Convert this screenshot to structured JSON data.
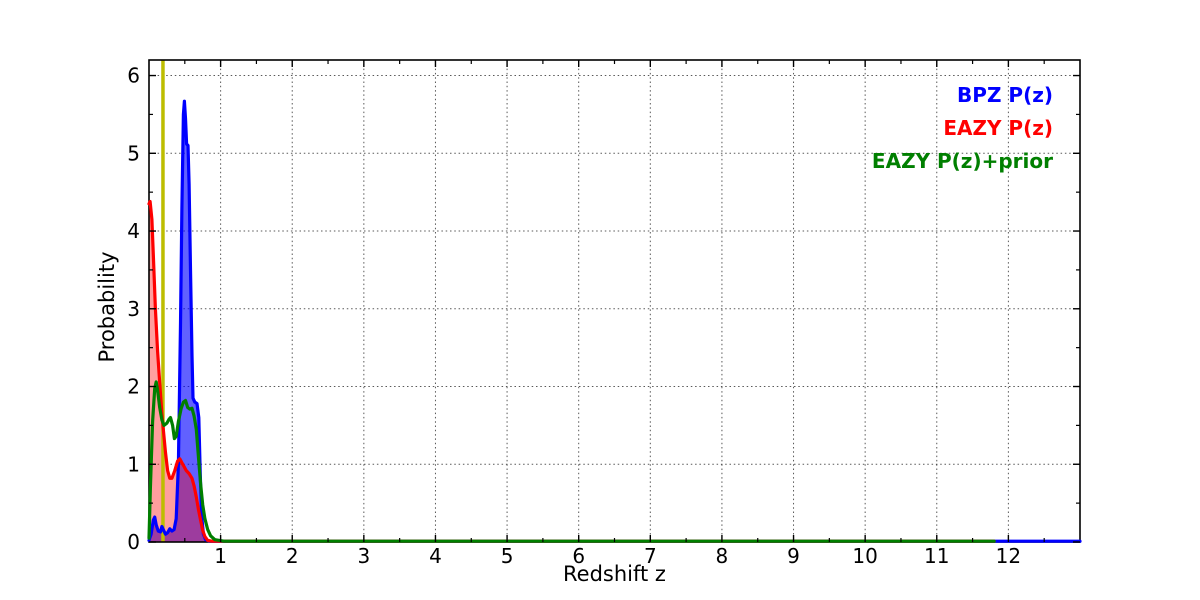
{
  "figure": {
    "background": "#ffffff"
  },
  "chart_data": {
    "type": "line",
    "title": "",
    "xlabel": "Redshift z",
    "ylabel": "Probability",
    "xlim": [
      0,
      13
    ],
    "ylim": [
      0,
      6.2
    ],
    "x_tick_values": [
      1,
      2,
      3,
      4,
      5,
      6,
      7,
      8,
      9,
      10,
      11,
      12
    ],
    "x_tick_labels": [
      "1",
      "2",
      "3",
      "4",
      "5",
      "6",
      "7",
      "8",
      "9",
      "10",
      "11",
      "12"
    ],
    "y_tick_values": [
      0,
      1,
      2,
      3,
      4,
      5,
      6
    ],
    "y_tick_labels": [
      "0",
      "1",
      "2",
      "3",
      "4",
      "5",
      "6"
    ],
    "minor_tick_step": 0.5,
    "grid": {
      "on": true,
      "style": "dotted",
      "color": "#000000",
      "ticks": "major"
    },
    "frame_color": "#000000",
    "vertical_marker": {
      "x": 0.195,
      "color": "#bdbd00"
    },
    "series": [
      {
        "name": "BPZ P(z)",
        "color": "#0000ff",
        "fill": true,
        "fill_opacity": 0.62,
        "points": [
          [
            0,
            0.02
          ],
          [
            0.03,
            0.1
          ],
          [
            0.06,
            0.28
          ],
          [
            0.08,
            0.32
          ],
          [
            0.1,
            0.22
          ],
          [
            0.13,
            0.14
          ],
          [
            0.16,
            0.13
          ],
          [
            0.18,
            0.2
          ],
          [
            0.2,
            0.16
          ],
          [
            0.23,
            0.1
          ],
          [
            0.26,
            0.12
          ],
          [
            0.29,
            0.17
          ],
          [
            0.32,
            0.14
          ],
          [
            0.35,
            0.16
          ],
          [
            0.38,
            0.3
          ],
          [
            0.41,
            1.0
          ],
          [
            0.44,
            2.8
          ],
          [
            0.46,
            4.3
          ],
          [
            0.48,
            5.5
          ],
          [
            0.495,
            5.67
          ],
          [
            0.51,
            5.45
          ],
          [
            0.525,
            5.12
          ],
          [
            0.545,
            5.1
          ],
          [
            0.56,
            4.6
          ],
          [
            0.58,
            3.5
          ],
          [
            0.6,
            2.4
          ],
          [
            0.615,
            1.85
          ],
          [
            0.64,
            1.8
          ],
          [
            0.67,
            1.78
          ],
          [
            0.695,
            1.6
          ],
          [
            0.715,
            0.9
          ],
          [
            0.735,
            0.35
          ],
          [
            0.76,
            0.1
          ],
          [
            0.79,
            0.03
          ],
          [
            0.85,
            0.01
          ],
          [
            1.0,
            0.01
          ],
          [
            13,
            0.01
          ]
        ]
      },
      {
        "name": "EAZY P(z)",
        "color": "#ff0000",
        "fill": true,
        "fill_opacity": 0.38,
        "points": [
          [
            0,
            4.35
          ],
          [
            0.015,
            4.38
          ],
          [
            0.04,
            4.15
          ],
          [
            0.06,
            3.7
          ],
          [
            0.09,
            3.0
          ],
          [
            0.12,
            2.45
          ],
          [
            0.15,
            2.05
          ],
          [
            0.18,
            1.65
          ],
          [
            0.2,
            1.45
          ],
          [
            0.23,
            1.15
          ],
          [
            0.26,
            0.92
          ],
          [
            0.29,
            0.82
          ],
          [
            0.32,
            0.82
          ],
          [
            0.36,
            0.92
          ],
          [
            0.4,
            1.04
          ],
          [
            0.43,
            1.07
          ],
          [
            0.46,
            1.02
          ],
          [
            0.49,
            0.97
          ],
          [
            0.52,
            0.92
          ],
          [
            0.56,
            0.88
          ],
          [
            0.6,
            0.82
          ],
          [
            0.63,
            0.72
          ],
          [
            0.66,
            0.58
          ],
          [
            0.69,
            0.42
          ],
          [
            0.72,
            0.28
          ],
          [
            0.75,
            0.15
          ],
          [
            0.78,
            0.07
          ],
          [
            0.82,
            0.02
          ],
          [
            0.88,
            0.01
          ],
          [
            11.8,
            0.01
          ]
        ]
      },
      {
        "name": "EAZY P(z)+prior",
        "color": "#007f00",
        "fill": false,
        "fill_opacity": 0,
        "points": [
          [
            0,
            0.05
          ],
          [
            0.02,
            0.7
          ],
          [
            0.05,
            1.55
          ],
          [
            0.08,
            1.97
          ],
          [
            0.1,
            2.06
          ],
          [
            0.12,
            1.95
          ],
          [
            0.15,
            1.73
          ],
          [
            0.18,
            1.57
          ],
          [
            0.21,
            1.5
          ],
          [
            0.25,
            1.53
          ],
          [
            0.28,
            1.58
          ],
          [
            0.3,
            1.6
          ],
          [
            0.33,
            1.5
          ],
          [
            0.355,
            1.33
          ],
          [
            0.38,
            1.36
          ],
          [
            0.41,
            1.55
          ],
          [
            0.45,
            1.72
          ],
          [
            0.48,
            1.8
          ],
          [
            0.51,
            1.82
          ],
          [
            0.54,
            1.73
          ],
          [
            0.57,
            1.71
          ],
          [
            0.6,
            1.72
          ],
          [
            0.63,
            1.62
          ],
          [
            0.66,
            1.45
          ],
          [
            0.69,
            1.1
          ],
          [
            0.72,
            0.75
          ],
          [
            0.75,
            0.48
          ],
          [
            0.78,
            0.3
          ],
          [
            0.82,
            0.16
          ],
          [
            0.86,
            0.08
          ],
          [
            0.92,
            0.03
          ],
          [
            1.05,
            0.01
          ],
          [
            11.8,
            0.01
          ]
        ]
      }
    ],
    "legend": {
      "position": "upper-right",
      "entries": [
        {
          "label": "BPZ P(z)",
          "color": "#0000ff"
        },
        {
          "label": "EAZY P(z)",
          "color": "#ff0000"
        },
        {
          "label": "EAZY P(z)+prior",
          "color": "#007f00"
        }
      ]
    }
  }
}
